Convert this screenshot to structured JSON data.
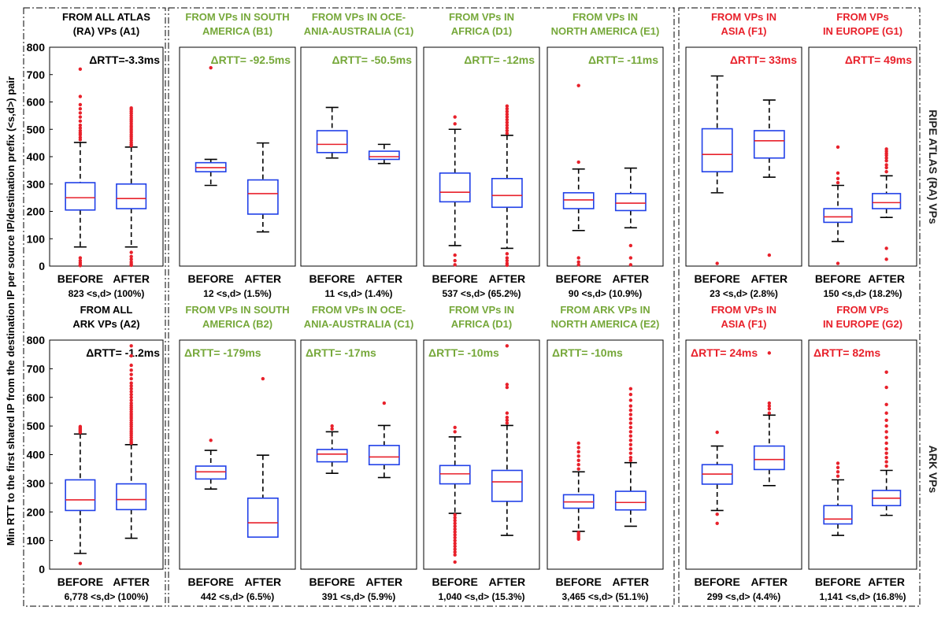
{
  "figure": {
    "y_axis_label": "Min RTT to the first shared IP from the destination IP per source IP/destination prefix (<s,d>) pair",
    "row_labels": [
      "RIPE ATLAS (RA) VPs",
      "ARK VPs"
    ],
    "colors": {
      "green": "#76a83a",
      "red": "#e8212b",
      "black": "#000000",
      "box": "#2040e8",
      "median": "#e8212b",
      "outlier": "#e8212b"
    }
  },
  "chart_data": [
    {
      "id": "A1",
      "type": "boxplot",
      "row": 0,
      "title": [
        "FROM ALL ATLAS",
        "(RA) VPs (A1)"
      ],
      "title_color": "black",
      "delta": "ΔRTT=-3.3ms",
      "delta_color": "black",
      "categories": [
        "BEFORE",
        "AFTER"
      ],
      "count": "823 <s,d> (100%)",
      "ylim": [
        0,
        800
      ],
      "yticks": [
        0,
        100,
        200,
        300,
        400,
        500,
        600,
        700,
        800
      ],
      "boxes": [
        {
          "lw": 70,
          "q1": 205,
          "med": 250,
          "q3": 305,
          "uw": 452,
          "outliers": [
            720,
            620,
            590,
            575,
            560,
            545,
            530,
            515,
            505,
            495,
            487,
            480,
            470,
            462,
            30,
            20,
            12,
            5,
            2
          ]
        },
        {
          "lw": 70,
          "q1": 210,
          "med": 247,
          "q3": 300,
          "uw": 435,
          "outliers": [
            578,
            572,
            565,
            558,
            550,
            542,
            535,
            528,
            520,
            512,
            505,
            498,
            490,
            482,
            475,
            468,
            460,
            452,
            445,
            440,
            50,
            35,
            25,
            15,
            8,
            3
          ]
        }
      ]
    },
    {
      "id": "B1",
      "type": "boxplot",
      "row": 0,
      "title": [
        "FROM VPs IN SOUTH",
        "AMERICA (B1)"
      ],
      "title_color": "green",
      "delta": "ΔRTT= -92.5ms",
      "delta_color": "green",
      "categories": [
        "BEFORE",
        "AFTER"
      ],
      "count": "12 <s,d> (1.5%)",
      "ylim": [
        0,
        800
      ],
      "boxes": [
        {
          "lw": 295,
          "q1": 345,
          "med": 360,
          "q3": 378,
          "uw": 390,
          "outliers": [
            725
          ]
        },
        {
          "lw": 125,
          "q1": 190,
          "med": 265,
          "q3": 315,
          "uw": 450,
          "outliers": []
        }
      ]
    },
    {
      "id": "C1",
      "type": "boxplot",
      "row": 0,
      "title": [
        "FROM VPs IN OCE-",
        "ANIA-AUSTRALIA (C1)"
      ],
      "title_color": "green",
      "delta": "ΔRTT= -50.5ms",
      "delta_color": "green",
      "categories": [
        "BEFORE",
        "AFTER"
      ],
      "count": "11 <s,d> (1.4%)",
      "ylim": [
        0,
        800
      ],
      "boxes": [
        {
          "lw": 395,
          "q1": 415,
          "med": 445,
          "q3": 495,
          "uw": 580,
          "outliers": []
        },
        {
          "lw": 375,
          "q1": 390,
          "med": 400,
          "q3": 420,
          "uw": 445,
          "outliers": []
        }
      ]
    },
    {
      "id": "D1",
      "type": "boxplot",
      "row": 0,
      "title": [
        "FROM VPs IN",
        "AFRICA (D1)"
      ],
      "title_color": "green",
      "delta": "ΔRTT= -12ms",
      "delta_color": "green",
      "categories": [
        "BEFORE",
        "AFTER"
      ],
      "count": "537 <s,d> (65.2%)",
      "ylim": [
        0,
        800
      ],
      "boxes": [
        {
          "lw": 75,
          "q1": 235,
          "med": 270,
          "q3": 340,
          "uw": 500,
          "outliers": [
            545,
            520,
            40,
            20,
            5
          ]
        },
        {
          "lw": 65,
          "q1": 215,
          "med": 258,
          "q3": 320,
          "uw": 478,
          "outliers": [
            585,
            575,
            565,
            555,
            545,
            535,
            525,
            515,
            505,
            495,
            485,
            45,
            30,
            20,
            10,
            3
          ]
        }
      ]
    },
    {
      "id": "E1",
      "type": "boxplot",
      "row": 0,
      "title": [
        "FROM VPs IN",
        "NORTH AMERICA (E1)"
      ],
      "title_color": "green",
      "delta": "ΔRTT= -11ms",
      "delta_color": "green",
      "categories": [
        "BEFORE",
        "AFTER"
      ],
      "count": "90 <s,d> (10.9%)",
      "ylim": [
        0,
        800
      ],
      "boxes": [
        {
          "lw": 130,
          "q1": 210,
          "med": 242,
          "q3": 268,
          "uw": 355,
          "outliers": [
            660,
            380,
            30,
            15,
            5
          ]
        },
        {
          "lw": 140,
          "q1": 203,
          "med": 230,
          "q3": 265,
          "uw": 358,
          "outliers": [
            75,
            30,
            5
          ]
        }
      ]
    },
    {
      "id": "F1",
      "type": "boxplot",
      "row": 0,
      "title": [
        "FROM VPs IN",
        "ASIA (F1)"
      ],
      "title_color": "red",
      "delta": "ΔRTT= 33ms",
      "delta_color": "red",
      "categories": [
        "BEFORE",
        "AFTER"
      ],
      "count": "23 <s,d> (2.8%)",
      "ylim": [
        0,
        800
      ],
      "boxes": [
        {
          "lw": 268,
          "q1": 345,
          "med": 408,
          "q3": 502,
          "uw": 695,
          "outliers": [
            10
          ]
        },
        {
          "lw": 325,
          "q1": 395,
          "med": 458,
          "q3": 495,
          "uw": 607,
          "outliers": [
            40
          ]
        }
      ]
    },
    {
      "id": "G1",
      "type": "boxplot",
      "row": 0,
      "title": [
        "FROM VPs",
        "IN EUROPE (G1)"
      ],
      "title_color": "red",
      "delta": "ΔRTT= 49ms",
      "delta_color": "red",
      "categories": [
        "BEFORE",
        "AFTER"
      ],
      "count": "150 <s,d> (18.2%)",
      "ylim": [
        0,
        800
      ],
      "boxes": [
        {
          "lw": 90,
          "q1": 160,
          "med": 180,
          "q3": 210,
          "uw": 295,
          "outliers": [
            435,
            340,
            320,
            305,
            10
          ]
        },
        {
          "lw": 178,
          "q1": 210,
          "med": 232,
          "q3": 265,
          "uw": 330,
          "outliers": [
            428,
            420,
            412,
            405,
            395,
            385,
            370,
            360,
            345,
            65,
            25
          ]
        }
      ]
    },
    {
      "id": "A2",
      "type": "boxplot",
      "row": 1,
      "title": [
        "FROM ALL",
        "ARK VPs (A2)"
      ],
      "title_color": "black",
      "delta": "ΔRTT= -1.2ms",
      "delta_color": "black",
      "categories": [
        "BEFORE",
        "AFTER"
      ],
      "count": "6,778 <s,d> (100%)",
      "ylim": [
        0,
        800
      ],
      "yticks": [
        0,
        100,
        200,
        300,
        400,
        500,
        600,
        700,
        800
      ],
      "boxes": [
        {
          "lw": 55,
          "q1": 205,
          "med": 242,
          "q3": 312,
          "uw": 472,
          "outliers": [
            498,
            495,
            492,
            489,
            486,
            483,
            480,
            477,
            20
          ]
        },
        {
          "lw": 108,
          "q1": 208,
          "med": 243,
          "q3": 298,
          "uw": 435,
          "outliers": [
            780,
            745,
            712,
            695,
            680,
            665,
            650,
            640,
            630,
            620,
            610,
            600,
            590,
            580,
            572,
            565,
            558,
            550,
            542,
            535,
            528,
            520,
            512,
            505,
            498,
            490,
            482,
            475,
            468,
            460,
            452,
            445,
            440
          ]
        }
      ]
    },
    {
      "id": "B2",
      "type": "boxplot",
      "row": 1,
      "title": [
        "FROM VPs IN SOUTH",
        "AMERICA (B2)"
      ],
      "title_color": "green",
      "delta": "ΔRTT= -179ms",
      "delta_color": "green",
      "categories": [
        "BEFORE",
        "AFTER"
      ],
      "count": "442 <s,d> (6.5%)",
      "ylim": [
        0,
        800
      ],
      "boxes": [
        {
          "lw": 280,
          "q1": 315,
          "med": 340,
          "q3": 360,
          "uw": 415,
          "outliers": [
            450
          ]
        },
        {
          "lw": 112,
          "q1": 112,
          "med": 162,
          "q3": 248,
          "uw": 398,
          "outliers": [
            665
          ]
        }
      ]
    },
    {
      "id": "C2",
      "type": "boxplot",
      "row": 1,
      "title": [
        "FROM VPs IN OCE-",
        "ANIA-AUSTRALIA (C1)"
      ],
      "title_color": "green",
      "delta": "ΔRTT= -17ms",
      "delta_color": "green",
      "categories": [
        "BEFORE",
        "AFTER"
      ],
      "count": "391 <s,d> (5.9%)",
      "ylim": [
        0,
        800
      ],
      "boxes": [
        {
          "lw": 335,
          "q1": 375,
          "med": 402,
          "q3": 418,
          "uw": 480,
          "outliers": [
            500,
            490
          ]
        },
        {
          "lw": 320,
          "q1": 365,
          "med": 392,
          "q3": 432,
          "uw": 502,
          "outliers": [
            580
          ]
        }
      ]
    },
    {
      "id": "D2",
      "type": "boxplot",
      "row": 1,
      "title": [
        "FROM VPs IN",
        "AFRICA (D1)"
      ],
      "title_color": "green",
      "delta": "ΔRTT= -10ms",
      "delta_color": "green",
      "categories": [
        "BEFORE",
        "AFTER"
      ],
      "count": "1,040 <s,d> (15.3%)",
      "ylim": [
        0,
        800
      ],
      "boxes": [
        {
          "lw": 195,
          "q1": 298,
          "med": 333,
          "q3": 362,
          "uw": 462,
          "outliers": [
            495,
            480,
            190,
            180,
            170,
            160,
            150,
            140,
            130,
            120,
            110,
            100,
            90,
            80,
            70,
            60,
            50,
            25
          ]
        },
        {
          "lw": 118,
          "q1": 237,
          "med": 305,
          "q3": 345,
          "uw": 502,
          "outliers": [
            780,
            645,
            635,
            545,
            530,
            520,
            510
          ]
        }
      ]
    },
    {
      "id": "E2",
      "type": "boxplot",
      "row": 1,
      "title": [
        "FROM ARK VPs IN",
        "NORTH AMERICA (E2)"
      ],
      "title_color": "green",
      "delta": "ΔRTT= -10ms",
      "delta_color": "green",
      "categories": [
        "BEFORE",
        "AFTER"
      ],
      "count": "3,465 <s,d> (51.1%)",
      "ylim": [
        0,
        800
      ],
      "boxes": [
        {
          "lw": 132,
          "q1": 213,
          "med": 235,
          "q3": 260,
          "uw": 340,
          "outliers": [
            440,
            425,
            410,
            395,
            380,
            365,
            350,
            128,
            122,
            116,
            110,
            105
          ]
        },
        {
          "lw": 150,
          "q1": 207,
          "med": 233,
          "q3": 272,
          "uw": 372,
          "outliers": [
            630,
            610,
            590,
            570,
            555,
            540,
            525,
            510,
            495,
            480,
            465,
            450,
            435,
            420,
            405,
            390,
            380
          ]
        }
      ]
    },
    {
      "id": "F2",
      "type": "boxplot",
      "row": 1,
      "title": [
        "FROM VPs IN",
        "ASIA (F1)"
      ],
      "title_color": "red",
      "delta": "ΔRTT= 24ms",
      "delta_color": "red",
      "categories": [
        "BEFORE",
        "AFTER"
      ],
      "count": "299 <s,d> (4.4%)",
      "ylim": [
        0,
        800
      ],
      "boxes": [
        {
          "lw": 205,
          "q1": 297,
          "med": 332,
          "q3": 365,
          "uw": 430,
          "outliers": [
            478,
            192,
            160
          ]
        },
        {
          "lw": 292,
          "q1": 348,
          "med": 383,
          "q3": 430,
          "uw": 538,
          "outliers": [
            755,
            580,
            570,
            560,
            545
          ]
        }
      ]
    },
    {
      "id": "G2",
      "type": "boxplot",
      "row": 1,
      "title": [
        "FROM VPs",
        "IN EUROPE (G2)"
      ],
      "title_color": "red",
      "delta": "ΔRTT= 82ms",
      "delta_color": "red",
      "categories": [
        "BEFORE",
        "AFTER"
      ],
      "count": "1,141 <s,d> (16.8%)",
      "ylim": [
        0,
        800
      ],
      "boxes": [
        {
          "lw": 118,
          "q1": 158,
          "med": 175,
          "q3": 222,
          "uw": 312,
          "outliers": [
            370,
            355,
            340,
            325
          ]
        },
        {
          "lw": 188,
          "q1": 222,
          "med": 248,
          "q3": 275,
          "uw": 345,
          "outliers": [
            688,
            635,
            575,
            545,
            520,
            500,
            480,
            460,
            440,
            420,
            405,
            390,
            375,
            360
          ]
        }
      ]
    }
  ]
}
